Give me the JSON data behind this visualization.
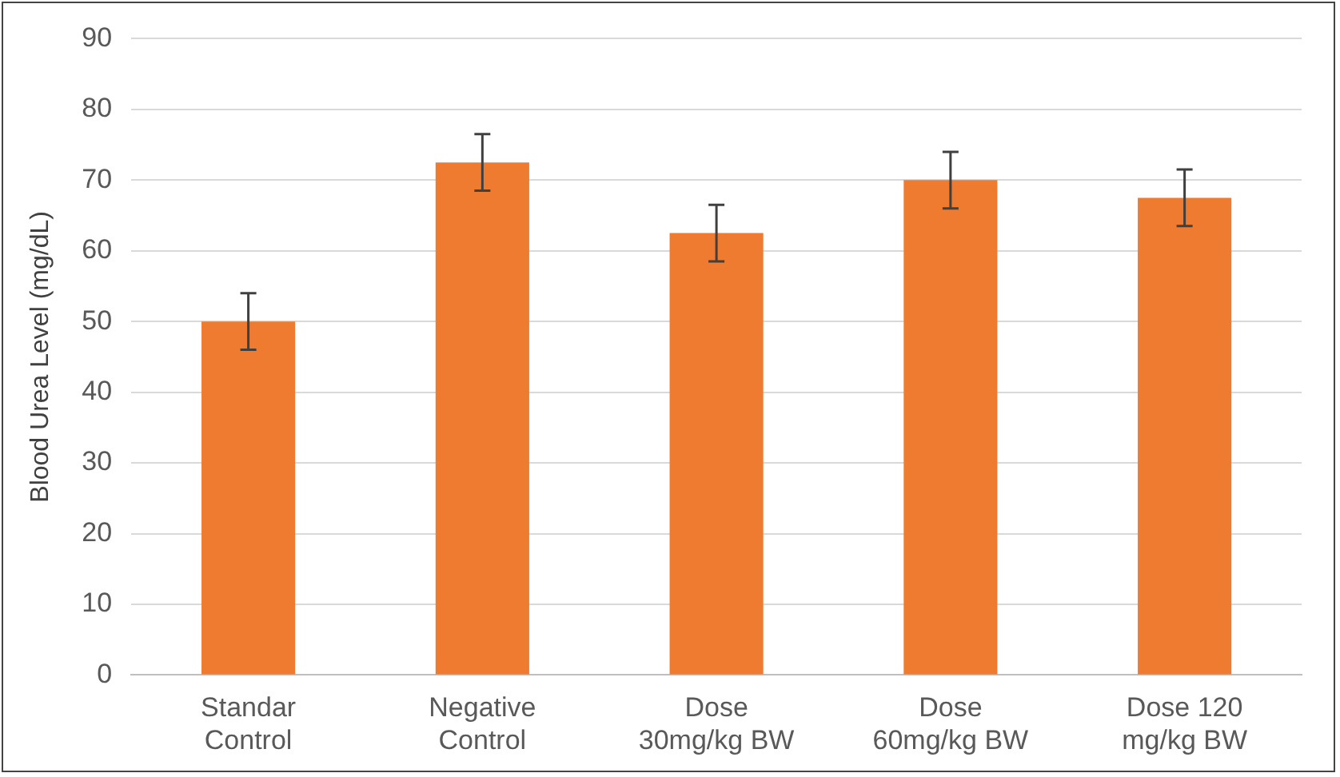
{
  "chart_data": {
    "type": "bar",
    "ylabel": "Blood Urea Level (mg/dL)",
    "categories": [
      "Standar Control",
      "Negative Control",
      "Dose 30mg/kg BW",
      "Dose 60mg/kg BW",
      "Dose 120 mg/kg BW"
    ],
    "values": [
      50,
      72.5,
      62.5,
      70,
      67.5
    ],
    "errors": [
      4,
      4,
      4,
      4,
      4
    ],
    "color": "#ee7b30",
    "ylim": [
      0,
      90
    ],
    "yticks": [
      0,
      10,
      20,
      30,
      40,
      50,
      60,
      70,
      80,
      90
    ],
    "grid": "y",
    "legend": false
  }
}
